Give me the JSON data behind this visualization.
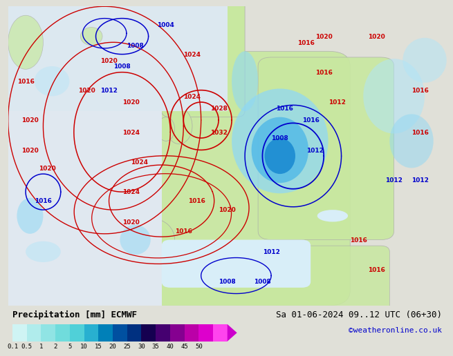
{
  "title_left": "Precipitation [mm] ECMWF",
  "title_right": "Sa 01-06-2024 09..12 UTC (06+30)",
  "attribution": "©weatheronline.co.uk",
  "colorbar_values": [
    "0.1",
    "0.5",
    "1",
    "2",
    "5",
    "10",
    "15",
    "20",
    "25",
    "30",
    "35",
    "40",
    "45",
    "50"
  ],
  "cb_colors": [
    "#cff4f4",
    "#b0ecec",
    "#90e4e4",
    "#70dcdc",
    "#50d0d8",
    "#28b0d0",
    "#0080b8",
    "#0050a0",
    "#003080",
    "#150050",
    "#450070",
    "#850090",
    "#bb00a8",
    "#dd00cc",
    "#ff44ee"
  ],
  "land_color": "#c8e8a0",
  "sea_color": "#e8e8e8",
  "precip_light": "#a0e8f8",
  "precip_mid": "#60c8f0",
  "precip_dark": "#2090d8",
  "red_isobar": "#cc0000",
  "blue_isobar": "#0000cc",
  "title_fontsize": 9,
  "label_fontsize": 7,
  "attribution_color": "#0000cc",
  "attribution_fontsize": 8,
  "legend_bg": "#e0e0d8"
}
